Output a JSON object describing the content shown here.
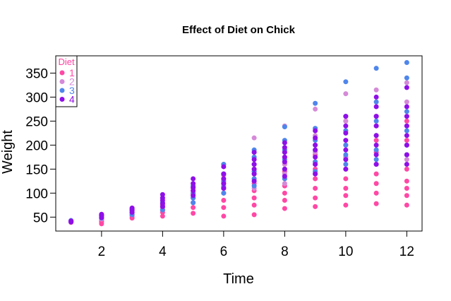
{
  "chart_data": {
    "type": "scatter",
    "title": "Effect of Diet on Chick",
    "xlabel": "Time",
    "ylabel": "Weight",
    "xlim": [
      0.5,
      12.5
    ],
    "ylim": [
      21,
      386
    ],
    "xticks": [
      2,
      4,
      6,
      8,
      10,
      12
    ],
    "yticks": [
      50,
      100,
      150,
      200,
      250,
      300,
      350
    ],
    "grid": false,
    "legend": {
      "title": "Diet",
      "title_color": "#ff3fa0",
      "placement": "top-left",
      "entries": [
        {
          "label": "1",
          "color": "#ff48a5"
        },
        {
          "label": "2",
          "color": "#d58ad8"
        },
        {
          "label": "3",
          "color": "#4f86ec"
        },
        {
          "label": "4",
          "color": "#8f0fe8"
        }
      ]
    },
    "series": [
      {
        "name": "1",
        "color": "#ff48a5",
        "x": [
          1,
          1,
          1,
          1,
          2,
          2,
          2,
          2,
          2,
          3,
          3,
          3,
          3,
          3,
          4,
          4,
          4,
          4,
          4,
          4,
          5,
          5,
          5,
          5,
          5,
          5,
          5,
          6,
          6,
          6,
          6,
          6,
          6,
          6,
          6,
          7,
          7,
          7,
          7,
          7,
          7,
          7,
          7,
          7,
          8,
          8,
          8,
          8,
          8,
          8,
          8,
          8,
          9,
          9,
          9,
          9,
          9,
          9,
          9,
          9,
          10,
          10,
          10,
          10,
          10,
          10,
          10,
          10,
          10,
          11,
          11,
          11,
          11,
          11,
          11,
          11,
          11,
          11,
          12,
          12,
          12,
          12,
          12,
          12,
          12,
          12
        ],
        "y": [
          39,
          40,
          41,
          42,
          36,
          40,
          43,
          46,
          49,
          48,
          52,
          55,
          58,
          61,
          52,
          60,
          64,
          70,
          75,
          80,
          58,
          70,
          80,
          90,
          98,
          105,
          110,
          52,
          70,
          85,
          100,
          110,
          120,
          130,
          138,
          55,
          75,
          90,
          105,
          120,
          130,
          140,
          150,
          160,
          68,
          85,
          100,
          115,
          130,
          145,
          160,
          175,
          72,
          90,
          110,
          130,
          150,
          165,
          180,
          200,
          75,
          95,
          110,
          130,
          150,
          175,
          200,
          230,
          250,
          78,
          100,
          120,
          140,
          160,
          185,
          210,
          240,
          260,
          75,
          95,
          110,
          125,
          150,
          180,
          210,
          250
        ]
      },
      {
        "name": "2",
        "color": "#d58ad8",
        "x": [
          1,
          1,
          2,
          2,
          2,
          3,
          3,
          3,
          4,
          4,
          4,
          5,
          5,
          5,
          5,
          6,
          6,
          6,
          6,
          6,
          7,
          7,
          7,
          7,
          7,
          8,
          8,
          8,
          8,
          8,
          9,
          9,
          9,
          9,
          9,
          10,
          10,
          10,
          10,
          10,
          11,
          11,
          11,
          11,
          11,
          12,
          12,
          12,
          12,
          12
        ],
        "y": [
          40,
          42,
          46,
          50,
          53,
          55,
          60,
          64,
          65,
          72,
          80,
          80,
          90,
          100,
          110,
          100,
          115,
          125,
          140,
          160,
          110,
          125,
          145,
          175,
          215,
          120,
          140,
          160,
          190,
          240,
          140,
          160,
          185,
          220,
          275,
          150,
          175,
          200,
          250,
          307,
          160,
          190,
          220,
          260,
          315,
          170,
          200,
          240,
          290,
          330
        ]
      },
      {
        "name": "3",
        "color": "#4f86ec",
        "x": [
          1,
          1,
          2,
          2,
          3,
          3,
          3,
          4,
          4,
          4,
          5,
          5,
          5,
          5,
          6,
          6,
          6,
          6,
          6,
          7,
          7,
          7,
          7,
          7,
          7,
          8,
          8,
          8,
          8,
          8,
          8,
          9,
          9,
          9,
          9,
          9,
          9,
          10,
          10,
          10,
          10,
          10,
          10,
          11,
          11,
          11,
          11,
          11,
          11,
          12,
          12,
          12,
          12,
          12,
          12
        ],
        "y": [
          40,
          43,
          48,
          53,
          55,
          60,
          65,
          65,
          72,
          80,
          80,
          90,
          100,
          115,
          100,
          112,
          125,
          140,
          160,
          115,
          130,
          145,
          160,
          175,
          190,
          130,
          150,
          170,
          190,
          210,
          238,
          145,
          165,
          190,
          210,
          235,
          287,
          160,
          180,
          200,
          230,
          260,
          332,
          170,
          190,
          220,
          250,
          290,
          360,
          180,
          200,
          230,
          270,
          340,
          372
        ]
      },
      {
        "name": "4",
        "color": "#8f0fe8",
        "x": [
          1,
          1,
          1,
          2,
          2,
          2,
          2,
          3,
          3,
          3,
          3,
          4,
          4,
          4,
          4,
          4,
          5,
          5,
          5,
          5,
          5,
          6,
          6,
          6,
          6,
          6,
          7,
          7,
          7,
          7,
          7,
          7,
          8,
          8,
          8,
          8,
          8,
          8,
          8,
          9,
          9,
          9,
          9,
          9,
          9,
          9,
          10,
          10,
          10,
          10,
          10,
          10,
          10,
          11,
          11,
          11,
          11,
          11,
          11,
          11,
          11,
          12,
          12,
          12,
          12,
          12,
          12,
          12,
          12
        ],
        "y": [
          40,
          42,
          41,
          49,
          52,
          54,
          56,
          60,
          64,
          67,
          69,
          72,
          78,
          85,
          90,
          97,
          95,
          105,
          112,
          120,
          130,
          110,
          120,
          130,
          140,
          155,
          125,
          140,
          150,
          160,
          170,
          185,
          135,
          150,
          165,
          175,
          185,
          195,
          205,
          140,
          160,
          175,
          190,
          200,
          215,
          230,
          150,
          170,
          190,
          210,
          225,
          240,
          260,
          160,
          180,
          200,
          220,
          240,
          260,
          280,
          300,
          160,
          180,
          200,
          220,
          240,
          260,
          280,
          320
        ]
      }
    ]
  }
}
